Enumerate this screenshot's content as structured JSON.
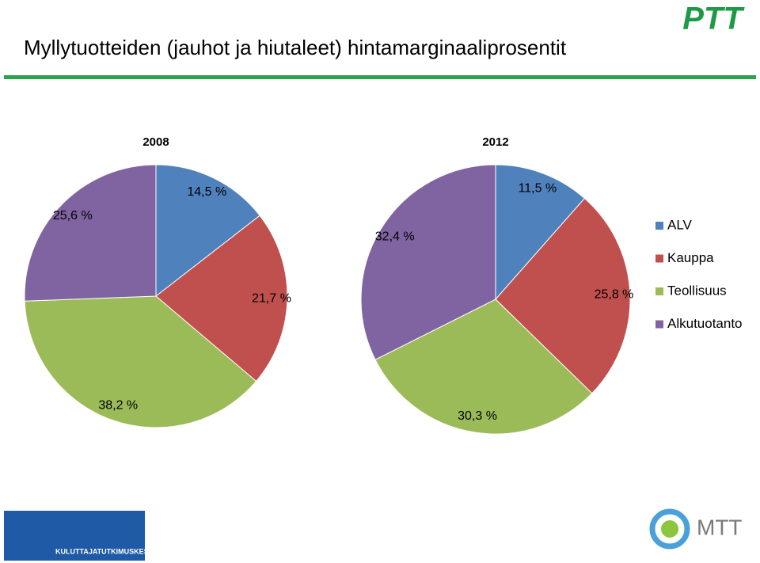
{
  "chart_data": {
    "type": "pie",
    "title": "Myllytuotteiden (jauhot ja hiutaleet) hintamarginaaliprosentit",
    "categories": [
      "ALV",
      "Kauppa",
      "Teollisuus",
      "Alkutuotanto"
    ],
    "colors": [
      "#4f81bd",
      "#c0504d",
      "#9bbb59",
      "#8064a2"
    ],
    "series": [
      {
        "name": "2008",
        "values": [
          14.5,
          21.7,
          38.2,
          25.6
        ],
        "value_labels": [
          "14,5 %",
          "21,7 %",
          "38,2 %",
          "25,6 %"
        ]
      },
      {
        "name": "2012",
        "values": [
          11.5,
          25.8,
          30.3,
          32.4
        ],
        "value_labels": [
          "11,5 %",
          "25,8 %",
          "30,3 %",
          "32,4 %"
        ]
      }
    ]
  },
  "logos": {
    "top_right": "PTT",
    "bottom_left": "KULUTTAJATUTKIMUSKESKUS",
    "bottom_right": "MTT"
  }
}
